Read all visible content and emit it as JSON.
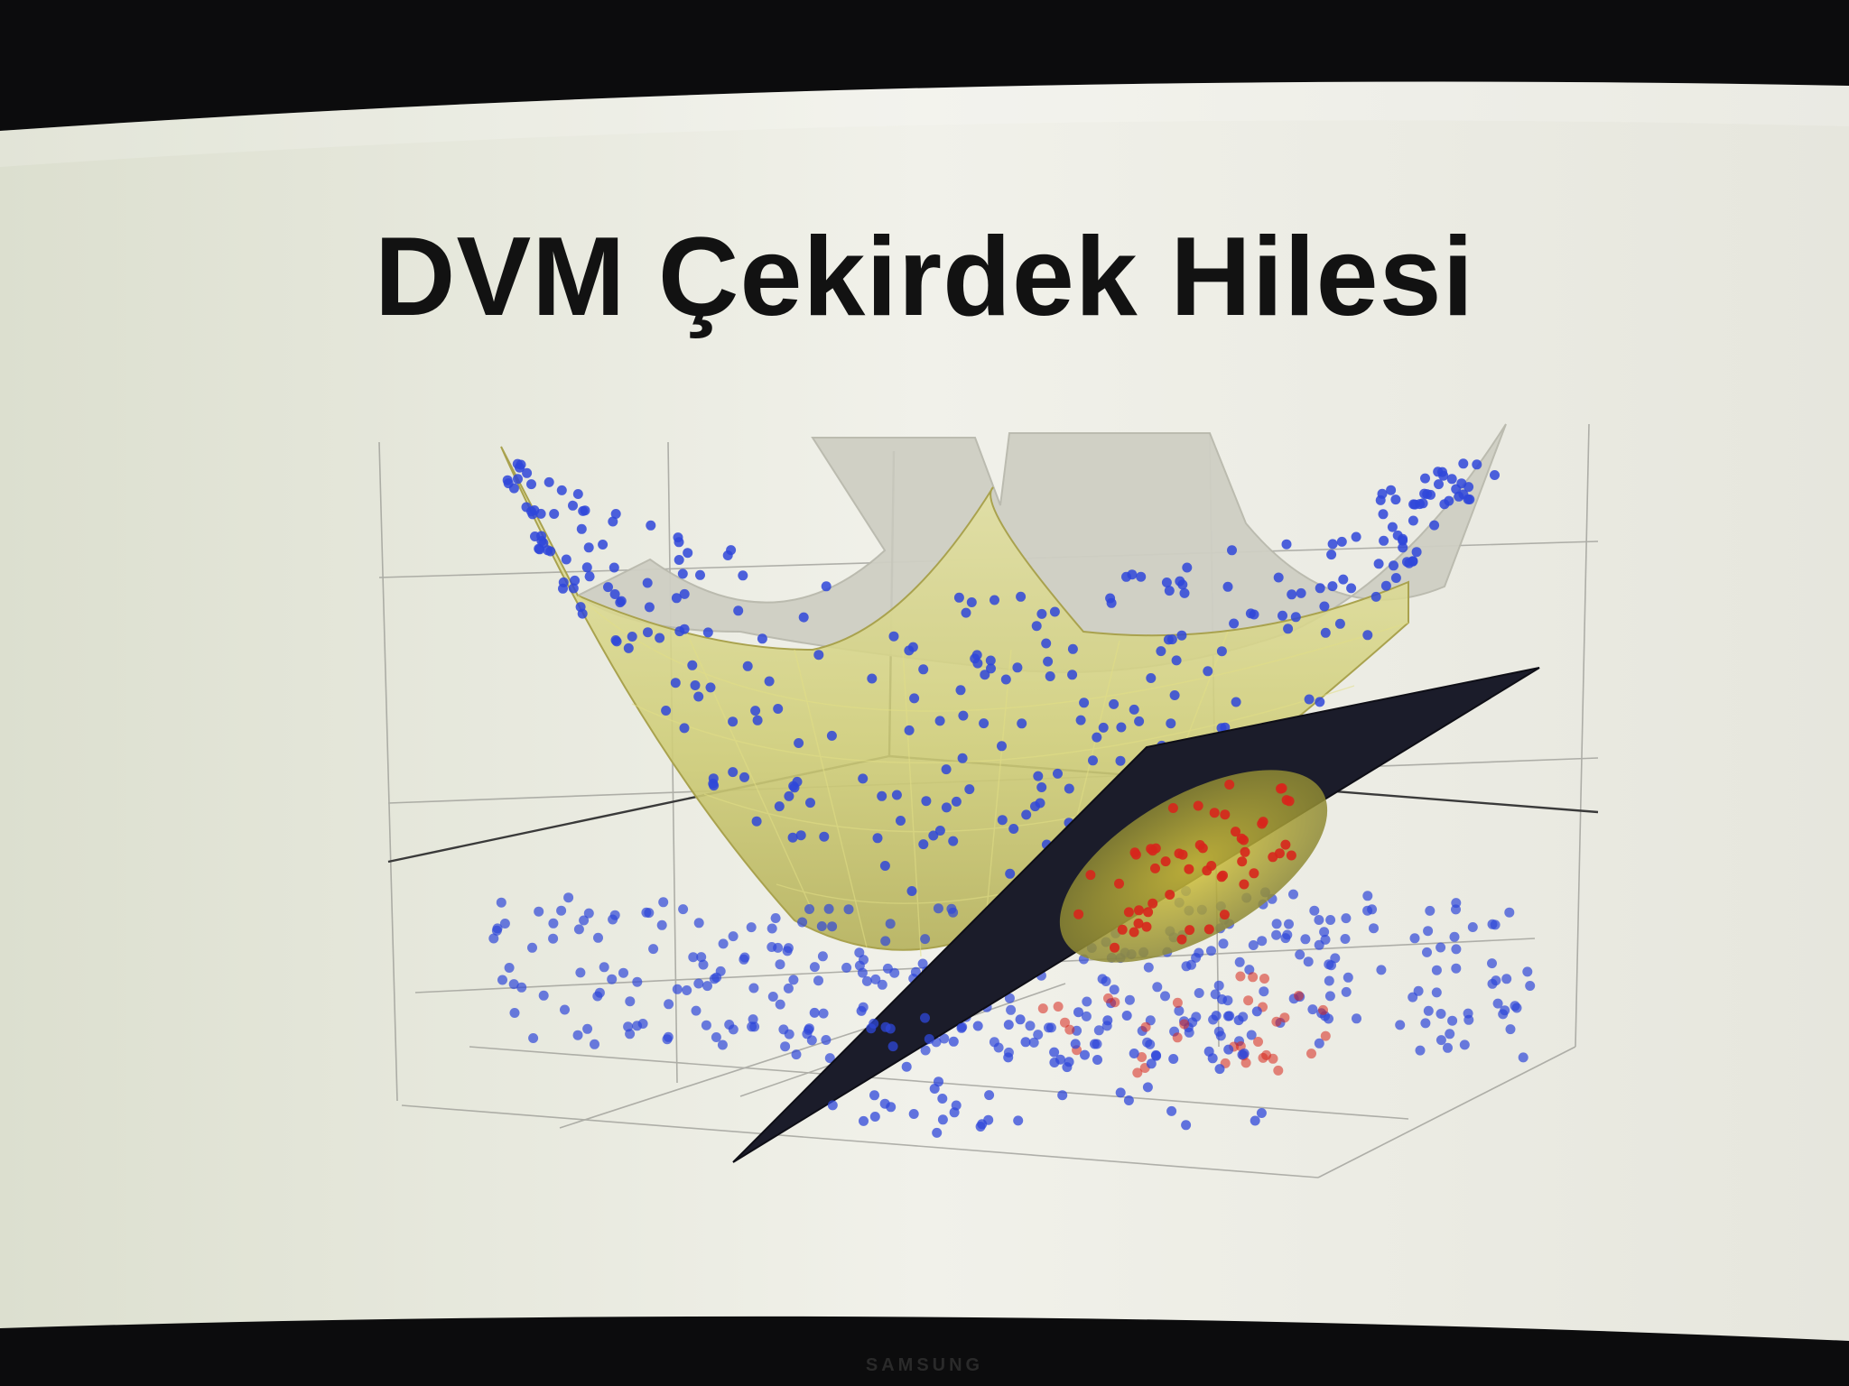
{
  "slide": {
    "title": "DVM Çekirdek Hilesi"
  },
  "monitor": {
    "brand": "SAMSUNG"
  },
  "figure": {
    "surface_color": "#c9c98a",
    "plane_color": "#1b1c2a",
    "class_a_color": "#2f47d9",
    "class_b_color": "#d7261c"
  }
}
